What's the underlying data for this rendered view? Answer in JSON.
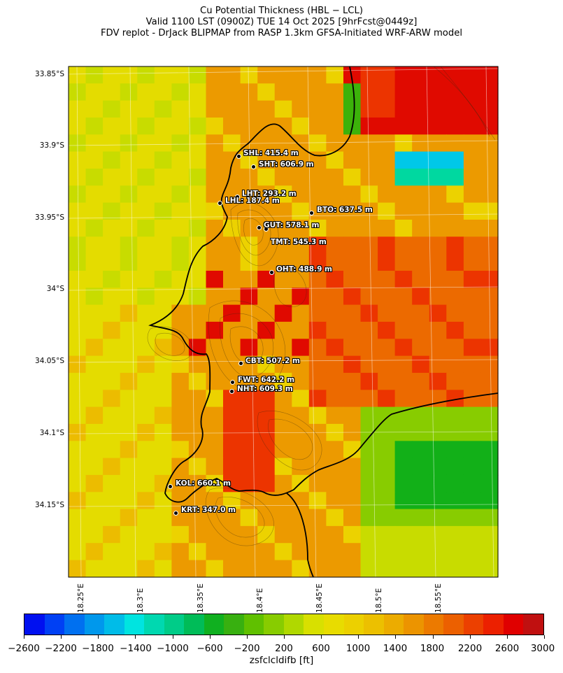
{
  "title_lines": [
    "Cu Potential Thickness (HBL − LCL)",
    "Valid 1100 LST (0900Z) TUE 14 Oct 2025 [9hrFcst@0449z]",
    "FDV replot - DrJack BLIPMAP from RASP 1.3km GFSA-Initiated WRF-ARW model"
  ],
  "lat_labels": [
    "33.85°S",
    "33.9°S",
    "33.95°S",
    "34°S",
    "34.05°S",
    "34.1°S",
    "34.15°S"
  ],
  "lon_labels": [
    "18.25°E",
    "18.3°E",
    "18.35°E",
    "18.4°E",
    "18.45°E",
    "18.5°E",
    "18.55°E"
  ],
  "stations": [
    {
      "label": "SHL: 415.4 m"
    },
    {
      "label": "SHT: 606.9 m"
    },
    {
      "label": "LHT: 293.2 m"
    },
    {
      "label": "LHL: 187.4 m"
    },
    {
      "label": "BTO: 637.5 m"
    },
    {
      "label": "GUT: 578.1 m"
    },
    {
      "label": "TMT: 545.3 m"
    },
    {
      "label": "OHT: 488.9 m"
    },
    {
      "label": "CBT: 507.2 m"
    },
    {
      "label": "FWT: 642.2 m"
    },
    {
      "label": "NHT: 609.3 m"
    },
    {
      "label": "KOL: 660.1 m"
    },
    {
      "label": "KRT: 347.0 m"
    }
  ],
  "colorbar": {
    "label": "zsfclcldifb [ft]",
    "ticks": [
      "−2600",
      "−2200",
      "−1800",
      "−1400",
      "−1000",
      "−600",
      "−200",
      "200",
      "600",
      "1000",
      "1400",
      "1800",
      "2200",
      "2600",
      "3000"
    ],
    "colors": [
      "#0010f0",
      "#0040f4",
      "#0070f0",
      "#0098ec",
      "#00bce8",
      "#00e4e0",
      "#00d8b0",
      "#00cc88",
      "#00bc58",
      "#10b020",
      "#38b010",
      "#60c000",
      "#88cc00",
      "#b0d800",
      "#d8e000",
      "#e8dc00",
      "#ecd000",
      "#ecc000",
      "#ecac00",
      "#ec9400",
      "#ec7a00",
      "#ec6000",
      "#ec4000",
      "#ec2000",
      "#e00000",
      "#c01010"
    ]
  }
}
